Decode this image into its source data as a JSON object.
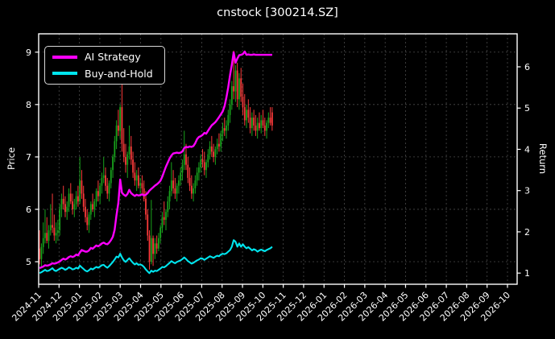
{
  "chart_data": {
    "type": "candlestick+line",
    "title": "cnstock [300214.SZ]",
    "background": "#000000",
    "grid": true,
    "legend_position": "upper left",
    "x_tick_labels": [
      "2024-11",
      "2024-12",
      "2025-01",
      "2025-02",
      "2025-03",
      "2025-04",
      "2025-05",
      "2025-06",
      "2025-07",
      "2025-08",
      "2025-09",
      "2025-10",
      "2025-11",
      "2025-12",
      "2026-01",
      "2026-02",
      "2026-03",
      "2026-04",
      "2026-05",
      "2026-06",
      "2026-07",
      "2026-08",
      "2026-09",
      "2026-10"
    ],
    "data_span_months": 11.5,
    "y_left": {
      "label": "Price",
      "ticks": [
        5,
        6,
        7,
        8,
        9
      ],
      "range": [
        4.57,
        9.35
      ]
    },
    "y_right": {
      "label": "Return",
      "ticks": [
        1,
        2,
        3,
        4,
        5,
        6
      ],
      "range": [
        0.73,
        6.8
      ]
    },
    "candle_up_color": "#18a31c",
    "candle_down_color": "#fa3a3a",
    "candles_ohlc": [
      [
        5.25,
        5.6,
        4.95,
        5.05
      ],
      [
        5.05,
        5.35,
        4.88,
        5.28
      ],
      [
        5.28,
        5.75,
        5.15,
        5.45
      ],
      [
        5.45,
        6.0,
        5.35,
        5.55
      ],
      [
        5.55,
        5.85,
        5.35,
        5.4
      ],
      [
        5.4,
        5.7,
        5.25,
        5.6
      ],
      [
        5.6,
        6.1,
        5.5,
        5.7
      ],
      [
        5.7,
        6.3,
        5.55,
        5.65
      ],
      [
        5.65,
        5.9,
        5.4,
        5.5
      ],
      [
        5.5,
        5.75,
        5.35,
        5.55
      ],
      [
        5.55,
        5.8,
        5.4,
        5.6
      ],
      [
        5.6,
        6.1,
        5.5,
        6.0
      ],
      [
        6.0,
        6.3,
        5.85,
        6.2
      ],
      [
        6.2,
        6.45,
        6.0,
        6.1
      ],
      [
        6.1,
        6.25,
        5.85,
        5.95
      ],
      [
        5.95,
        6.15,
        5.8,
        6.05
      ],
      [
        6.05,
        6.4,
        5.95,
        6.3
      ],
      [
        6.3,
        6.5,
        6.1,
        6.15
      ],
      [
        6.15,
        6.3,
        5.9,
        6.0
      ],
      [
        6.0,
        6.2,
        5.85,
        6.1
      ],
      [
        6.1,
        6.35,
        6.0,
        6.25
      ],
      [
        6.25,
        6.45,
        6.05,
        6.15
      ],
      [
        6.15,
        7.0,
        6.1,
        6.55
      ],
      [
        6.55,
        6.75,
        6.2,
        6.3
      ],
      [
        6.3,
        6.45,
        5.95,
        6.05
      ],
      [
        6.05,
        6.2,
        5.75,
        5.85
      ],
      [
        5.85,
        6.0,
        5.6,
        5.7
      ],
      [
        5.7,
        5.95,
        5.55,
        5.9
      ],
      [
        5.9,
        6.15,
        5.8,
        6.1
      ],
      [
        6.1,
        6.3,
        5.95,
        6.0
      ],
      [
        6.0,
        6.2,
        5.85,
        6.15
      ],
      [
        6.15,
        6.4,
        6.05,
        6.35
      ],
      [
        6.35,
        6.55,
        6.15,
        6.25
      ],
      [
        6.25,
        6.5,
        6.1,
        6.45
      ],
      [
        6.45,
        6.7,
        6.3,
        6.6
      ],
      [
        6.6,
        7.0,
        6.5,
        6.65
      ],
      [
        6.65,
        6.8,
        6.35,
        6.45
      ],
      [
        6.45,
        6.6,
        6.2,
        6.3
      ],
      [
        6.3,
        6.55,
        6.15,
        6.5
      ],
      [
        6.5,
        6.8,
        6.4,
        6.75
      ],
      [
        6.75,
        7.05,
        6.6,
        7.0
      ],
      [
        7.0,
        7.4,
        6.9,
        7.3
      ],
      [
        7.3,
        7.7,
        7.15,
        7.6
      ],
      [
        7.6,
        7.9,
        7.4,
        7.5
      ],
      [
        7.5,
        8.0,
        7.35,
        7.95
      ],
      [
        7.95,
        8.38,
        7.1,
        7.25
      ],
      [
        7.25,
        7.55,
        6.9,
        7.0
      ],
      [
        7.0,
        7.25,
        6.7,
        6.85
      ],
      [
        6.85,
        7.1,
        6.6,
        7.05
      ],
      [
        7.05,
        7.6,
        6.95,
        7.2
      ],
      [
        7.2,
        7.4,
        6.85,
        6.95
      ],
      [
        6.95,
        7.1,
        6.6,
        6.7
      ],
      [
        6.7,
        6.9,
        6.45,
        6.55
      ],
      [
        6.55,
        6.75,
        6.35,
        6.65
      ],
      [
        6.65,
        6.8,
        6.4,
        6.45
      ],
      [
        6.45,
        6.6,
        6.25,
        6.5
      ],
      [
        6.5,
        6.65,
        6.3,
        6.4
      ],
      [
        6.4,
        6.55,
        6.15,
        6.2
      ],
      [
        6.2,
        6.35,
        5.8,
        5.9
      ],
      [
        5.9,
        6.0,
        5.4,
        5.5
      ],
      [
        5.5,
        5.6,
        4.85,
        5.0
      ],
      [
        5.0,
        6.18,
        4.95,
        5.45
      ],
      [
        5.45,
        5.5,
        4.92,
        5.15
      ],
      [
        5.15,
        5.45,
        5.05,
        5.35
      ],
      [
        5.35,
        5.5,
        5.15,
        5.25
      ],
      [
        5.25,
        5.55,
        5.2,
        5.45
      ],
      [
        5.45,
        5.7,
        5.35,
        5.65
      ],
      [
        5.65,
        5.95,
        5.55,
        5.85
      ],
      [
        5.85,
        6.15,
        5.7,
        5.8
      ],
      [
        5.8,
        6.0,
        5.6,
        5.95
      ],
      [
        5.95,
        6.25,
        5.85,
        6.15
      ],
      [
        6.15,
        6.45,
        6.0,
        6.35
      ],
      [
        6.35,
        6.9,
        6.25,
        6.55
      ],
      [
        6.55,
        6.75,
        6.3,
        6.4
      ],
      [
        6.4,
        6.6,
        6.2,
        6.3
      ],
      [
        6.3,
        6.5,
        6.15,
        6.45
      ],
      [
        6.45,
        6.65,
        6.3,
        6.55
      ],
      [
        6.55,
        6.8,
        6.45,
        6.7
      ],
      [
        6.7,
        6.95,
        6.55,
        6.85
      ],
      [
        6.85,
        7.5,
        6.75,
        7.05
      ],
      [
        7.05,
        7.25,
        6.75,
        6.85
      ],
      [
        6.85,
        7.0,
        6.5,
        6.6
      ],
      [
        6.6,
        6.8,
        6.35,
        6.45
      ],
      [
        6.45,
        6.65,
        6.2,
        6.3
      ],
      [
        6.3,
        6.5,
        6.15,
        6.4
      ],
      [
        6.4,
        6.65,
        6.3,
        6.55
      ],
      [
        6.55,
        6.8,
        6.45,
        6.7
      ],
      [
        6.7,
        6.9,
        6.55,
        6.8
      ],
      [
        6.8,
        7.05,
        6.7,
        6.95
      ],
      [
        6.95,
        7.15,
        6.8,
        6.9
      ],
      [
        6.9,
        7.1,
        6.65,
        6.75
      ],
      [
        6.75,
        6.95,
        6.6,
        6.9
      ],
      [
        6.9,
        7.15,
        6.8,
        7.05
      ],
      [
        7.05,
        7.3,
        6.95,
        7.2
      ],
      [
        7.2,
        7.4,
        7.0,
        7.1
      ],
      [
        7.1,
        7.25,
        6.9,
        7.0
      ],
      [
        7.0,
        7.2,
        6.85,
        7.15
      ],
      [
        7.15,
        7.35,
        7.05,
        7.25
      ],
      [
        7.25,
        7.45,
        7.1,
        7.2
      ],
      [
        7.2,
        7.5,
        7.1,
        7.45
      ],
      [
        7.45,
        7.65,
        7.3,
        7.55
      ],
      [
        7.55,
        7.75,
        7.4,
        7.5
      ],
      [
        7.5,
        7.7,
        7.35,
        7.6
      ],
      [
        7.6,
        7.9,
        7.5,
        7.8
      ],
      [
        7.8,
        8.1,
        7.65,
        8.0
      ],
      [
        8.0,
        8.45,
        7.9,
        8.35
      ],
      [
        8.35,
        9.03,
        8.1,
        8.25
      ],
      [
        8.25,
        8.75,
        8.05,
        8.65
      ],
      [
        8.65,
        8.8,
        7.95,
        8.1
      ],
      [
        8.1,
        8.6,
        7.9,
        8.5
      ],
      [
        8.5,
        8.7,
        8.05,
        8.15
      ],
      [
        8.15,
        8.4,
        7.8,
        7.95
      ],
      [
        7.95,
        8.2,
        7.6,
        7.7
      ],
      [
        7.7,
        8.0,
        7.55,
        7.9
      ],
      [
        7.9,
        8.1,
        7.65,
        7.75
      ],
      [
        7.75,
        7.95,
        7.45,
        7.55
      ],
      [
        7.55,
        7.85,
        7.4,
        7.75
      ],
      [
        7.75,
        7.9,
        7.5,
        7.6
      ],
      [
        7.6,
        7.8,
        7.4,
        7.5
      ],
      [
        7.5,
        7.75,
        7.35,
        7.65
      ],
      [
        7.65,
        7.85,
        7.5,
        7.55
      ],
      [
        7.55,
        7.8,
        7.45,
        7.7
      ],
      [
        7.7,
        7.9,
        7.55,
        7.6
      ],
      [
        7.6,
        7.75,
        7.4,
        7.5
      ],
      [
        7.5,
        7.7,
        7.35,
        7.65
      ],
      [
        7.65,
        7.85,
        7.55,
        7.75
      ],
      [
        7.75,
        7.95,
        7.6,
        7.65
      ],
      [
        7.85,
        7.95,
        7.5,
        7.6
      ]
    ],
    "series": [
      {
        "name": "AI Strategy",
        "axis": "return",
        "color": "#ff00ff",
        "values": [
          1.12,
          1.14,
          1.16,
          1.19,
          1.18,
          1.19,
          1.21,
          1.24,
          1.23,
          1.24,
          1.26,
          1.28,
          1.32,
          1.35,
          1.33,
          1.35,
          1.39,
          1.41,
          1.39,
          1.41,
          1.45,
          1.43,
          1.5,
          1.56,
          1.54,
          1.52,
          1.52,
          1.55,
          1.61,
          1.59,
          1.63,
          1.67,
          1.65,
          1.68,
          1.72,
          1.74,
          1.71,
          1.7,
          1.74,
          1.8,
          1.88,
          2.05,
          2.4,
          2.7,
          3.27,
          2.95,
          2.9,
          2.87,
          2.92,
          3.02,
          2.94,
          2.9,
          2.87,
          2.9,
          2.88,
          2.89,
          2.91,
          2.88,
          2.9,
          2.94,
          3.0,
          3.04,
          3.08,
          3.12,
          3.15,
          3.19,
          3.24,
          3.34,
          3.46,
          3.58,
          3.68,
          3.78,
          3.85,
          3.9,
          3.91,
          3.92,
          3.91,
          3.92,
          3.95,
          4.03,
          4.06,
          4.05,
          4.07,
          4.06,
          4.08,
          4.15,
          4.25,
          4.3,
          4.32,
          4.35,
          4.4,
          4.38,
          4.45,
          4.52,
          4.58,
          4.62,
          4.66,
          4.72,
          4.78,
          4.85,
          4.92,
          5.05,
          5.25,
          5.5,
          5.8,
          6.05,
          6.35,
          6.1,
          6.2,
          6.28,
          6.29,
          6.31,
          6.37,
          6.29,
          6.3,
          6.29,
          6.29,
          6.3,
          6.29,
          6.29,
          6.29,
          6.29,
          6.29,
          6.29,
          6.29,
          6.29,
          6.29,
          6.29
        ]
      },
      {
        "name": "Buy-and-Hold",
        "axis": "return",
        "color": "#00e5ee",
        "values": [
          1.0,
          1.02,
          1.05,
          1.08,
          1.05,
          1.06,
          1.09,
          1.12,
          1.07,
          1.05,
          1.08,
          1.1,
          1.13,
          1.11,
          1.08,
          1.1,
          1.14,
          1.12,
          1.09,
          1.1,
          1.13,
          1.11,
          1.18,
          1.14,
          1.1,
          1.06,
          1.04,
          1.07,
          1.11,
          1.09,
          1.12,
          1.15,
          1.13,
          1.16,
          1.19,
          1.2,
          1.16,
          1.13,
          1.17,
          1.22,
          1.27,
          1.33,
          1.4,
          1.38,
          1.47,
          1.38,
          1.31,
          1.27,
          1.32,
          1.36,
          1.3,
          1.25,
          1.21,
          1.24,
          1.2,
          1.21,
          1.19,
          1.15,
          1.09,
          1.04,
          1.0,
          1.06,
          1.03,
          1.06,
          1.05,
          1.08,
          1.11,
          1.15,
          1.14,
          1.17,
          1.21,
          1.25,
          1.29,
          1.26,
          1.24,
          1.27,
          1.29,
          1.31,
          1.34,
          1.38,
          1.34,
          1.29,
          1.26,
          1.23,
          1.25,
          1.28,
          1.31,
          1.33,
          1.36,
          1.35,
          1.32,
          1.35,
          1.38,
          1.41,
          1.39,
          1.37,
          1.4,
          1.42,
          1.41,
          1.45,
          1.47,
          1.46,
          1.48,
          1.52,
          1.56,
          1.64,
          1.8,
          1.76,
          1.64,
          1.72,
          1.64,
          1.7,
          1.64,
          1.6,
          1.63,
          1.59,
          1.55,
          1.58,
          1.56,
          1.52,
          1.55,
          1.57,
          1.55,
          1.53,
          1.56,
          1.58,
          1.6,
          1.64
        ]
      }
    ]
  }
}
